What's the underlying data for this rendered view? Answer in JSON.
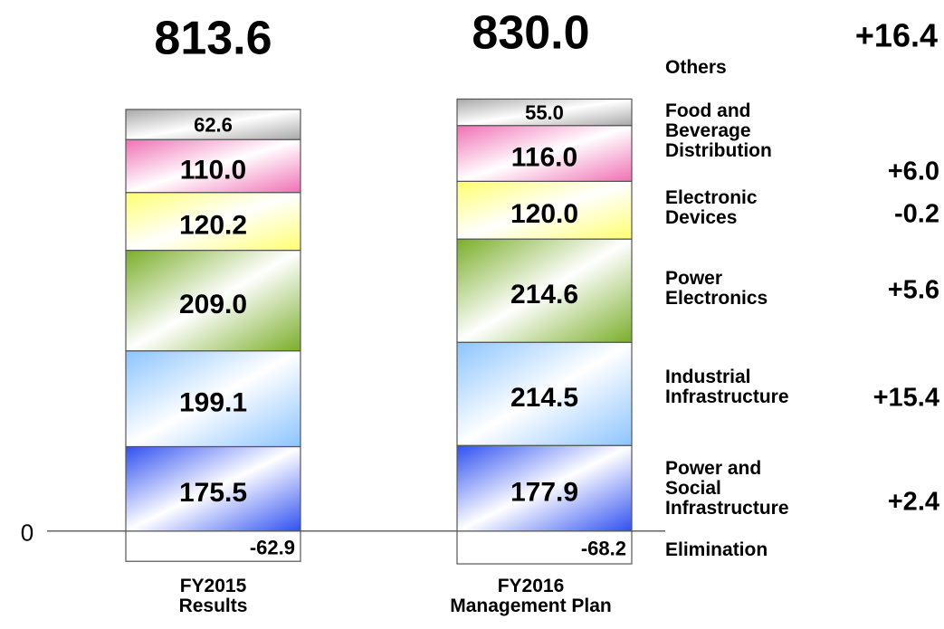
{
  "chart_data": {
    "type": "stacked-bar",
    "categories": [
      "FY2015 Results",
      "FY2016 Management Plan"
    ],
    "totals": {
      "values": [
        813.6,
        830.0
      ],
      "value_labels": [
        "813.6",
        "830.0"
      ]
    },
    "total_change": "+16.4",
    "series": [
      {
        "name": "Elimination",
        "color": "#ffffff",
        "values": [
          -62.9,
          -68.2
        ],
        "value_labels": [
          "-62.9",
          "-68.2"
        ]
      },
      {
        "name": "Power and Social Infrastructure",
        "color": "#3050f0",
        "values": [
          175.5,
          177.9
        ],
        "value_labels": [
          "175.5",
          "177.9"
        ],
        "change": "+2.4"
      },
      {
        "name": "Industrial Infrastructure",
        "color": "#8cc4ff",
        "values": [
          199.1,
          214.5
        ],
        "value_labels": [
          "199.1",
          "214.5"
        ],
        "change": "+15.4"
      },
      {
        "name": "Power Electronics",
        "color": "#7aae2a",
        "values": [
          209.0,
          214.6
        ],
        "value_labels": [
          "209.0",
          "214.6"
        ],
        "change": "+5.6"
      },
      {
        "name": "Electronic Devices",
        "color": "#ffff70",
        "values": [
          120.2,
          120.0
        ],
        "value_labels": [
          "120.2",
          "120.0"
        ],
        "change": "-0.2"
      },
      {
        "name": "Food and Beverage Distribution",
        "color": "#f070b4",
        "values": [
          110.0,
          116.0
        ],
        "value_labels": [
          "110.0",
          "116.0"
        ],
        "change": "+6.0"
      },
      {
        "name": "Others",
        "color": "#a8a8a8",
        "values": [
          62.6,
          55.0
        ],
        "value_labels": [
          "62.6",
          "55.0"
        ]
      }
    ],
    "ylim": [
      -70,
      880
    ],
    "yticks": [
      0
    ]
  }
}
